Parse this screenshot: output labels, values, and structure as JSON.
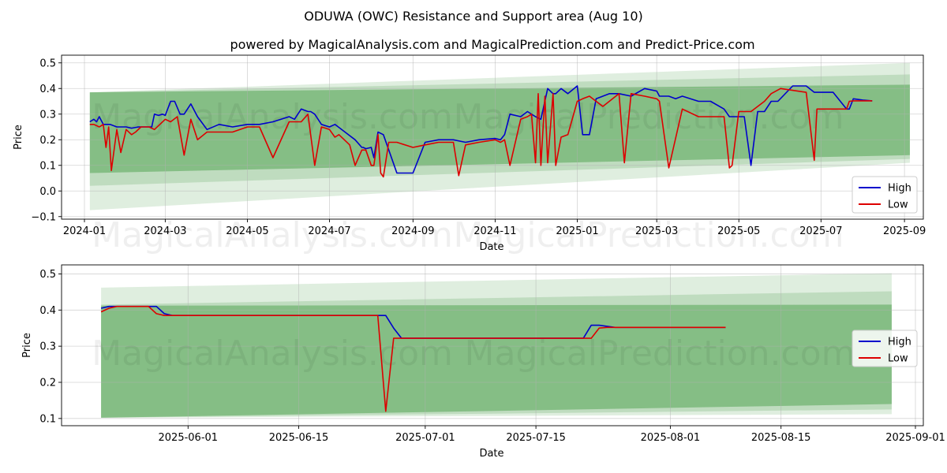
{
  "figure": {
    "title": "ODUWA (OWC) Resistance and Support area (Aug 10)",
    "subtitle": "powered by MagicalAnalysis.com and MagicalPrediction.com and Predict-Price.com",
    "watermark_left": "MagicalAnalysis.com",
    "watermark_right": "MagicalPrediction.com",
    "colors": {
      "high": "#0000cc",
      "low": "#dd0000",
      "band": "#4c9f4c"
    }
  },
  "chart_data": [
    {
      "type": "line",
      "xlabel": "Date",
      "ylabel": "Price",
      "xlim": [
        "2023-12-15",
        "2025-09-15"
      ],
      "ylim": [
        -0.11,
        0.53
      ],
      "x_ticks": [
        "2024-01-01",
        "2024-03-01",
        "2024-05-01",
        "2024-07-01",
        "2024-09-01",
        "2024-11-01",
        "2025-01-01",
        "2025-03-01",
        "2025-05-01",
        "2025-07-01",
        "2025-09-01"
      ],
      "x_tick_labels": [
        "2024-01",
        "2024-03",
        "2024-05",
        "2024-07",
        "2024-09",
        "2024-11",
        "2025-01",
        "2025-03",
        "2025-05",
        "2025-07",
        "2025-09"
      ],
      "y_ticks": [
        -0.1,
        0.0,
        0.1,
        0.2,
        0.3,
        0.4,
        0.5
      ],
      "y_tick_labels": [
        "−0.1",
        "0.0",
        "0.1",
        "0.2",
        "0.3",
        "0.4",
        "0.5"
      ],
      "grid": true,
      "legend": "lower right",
      "bands": [
        {
          "x": [
            "2024-01-05",
            "2025-09-05"
          ],
          "upper": [
            0.385,
            0.5
          ],
          "lower": [
            -0.075,
            0.11
          ],
          "opacity": 0.18
        },
        {
          "x": [
            "2024-01-05",
            "2025-09-05"
          ],
          "upper": [
            0.385,
            0.455
          ],
          "lower": [
            0.02,
            0.125
          ],
          "opacity": 0.22
        },
        {
          "x": [
            "2024-01-05",
            "2025-09-05"
          ],
          "upper": [
            0.385,
            0.415
          ],
          "lower": [
            0.07,
            0.14
          ],
          "opacity": 0.5
        }
      ],
      "series": [
        {
          "name": "High",
          "x": [
            "2024-01-05",
            "2024-01-08",
            "2024-01-10",
            "2024-01-12",
            "2024-01-15",
            "2024-01-20",
            "2024-01-25",
            "2024-02-01",
            "2024-02-05",
            "2024-02-10",
            "2024-02-15",
            "2024-02-20",
            "2024-02-22",
            "2024-02-25",
            "2024-02-28",
            "2024-03-01",
            "2024-03-05",
            "2024-03-08",
            "2024-03-12",
            "2024-03-15",
            "2024-03-20",
            "2024-03-25",
            "2024-04-01",
            "2024-04-10",
            "2024-04-20",
            "2024-05-01",
            "2024-05-10",
            "2024-05-20",
            "2024-06-01",
            "2024-06-05",
            "2024-06-10",
            "2024-06-15",
            "2024-06-17",
            "2024-06-20",
            "2024-06-25",
            "2024-07-01",
            "2024-07-05",
            "2024-07-10",
            "2024-07-15",
            "2024-07-20",
            "2024-07-25",
            "2024-07-26",
            "2024-07-28",
            "2024-08-01",
            "2024-08-03",
            "2024-08-06",
            "2024-08-10",
            "2024-08-20",
            "2024-09-01",
            "2024-09-10",
            "2024-09-20",
            "2024-10-01",
            "2024-10-10",
            "2024-10-20",
            "2024-11-01",
            "2024-11-05",
            "2024-11-08",
            "2024-11-12",
            "2024-11-20",
            "2024-11-25",
            "2024-11-28",
            "2024-12-01",
            "2024-12-05",
            "2024-12-10",
            "2024-12-14",
            "2024-12-16",
            "2024-12-20",
            "2024-12-25",
            "2025-01-01",
            "2025-01-05",
            "2025-01-10",
            "2025-01-15",
            "2025-01-20",
            "2025-01-25",
            "2025-02-01",
            "2025-02-10",
            "2025-02-20",
            "2025-03-01",
            "2025-03-03",
            "2025-03-10",
            "2025-03-15",
            "2025-03-20",
            "2025-04-01",
            "2025-04-10",
            "2025-04-20",
            "2025-04-24",
            "2025-04-26",
            "2025-05-01",
            "2025-05-05",
            "2025-05-10",
            "2025-05-15",
            "2025-05-20",
            "2025-05-25",
            "2025-05-30",
            "2025-06-10",
            "2025-06-20",
            "2025-06-26",
            "2025-06-28",
            "2025-07-10",
            "2025-07-20",
            "2025-07-22",
            "2025-07-25",
            "2025-08-01",
            "2025-08-08"
          ],
          "values": [
            0.27,
            0.28,
            0.27,
            0.29,
            0.26,
            0.26,
            0.25,
            0.25,
            0.245,
            0.25,
            0.25,
            0.25,
            0.3,
            0.295,
            0.3,
            0.295,
            0.35,
            0.35,
            0.3,
            0.3,
            0.34,
            0.29,
            0.24,
            0.26,
            0.25,
            0.26,
            0.26,
            0.27,
            0.29,
            0.28,
            0.32,
            0.31,
            0.31,
            0.3,
            0.26,
            0.25,
            0.26,
            0.24,
            0.22,
            0.2,
            0.17,
            0.17,
            0.165,
            0.17,
            0.13,
            0.23,
            0.22,
            0.07,
            0.07,
            0.19,
            0.2,
            0.2,
            0.19,
            0.2,
            0.205,
            0.2,
            0.22,
            0.3,
            0.29,
            0.31,
            0.3,
            0.29,
            0.28,
            0.4,
            0.38,
            0.38,
            0.4,
            0.38,
            0.41,
            0.22,
            0.22,
            0.36,
            0.37,
            0.38,
            0.38,
            0.37,
            0.4,
            0.39,
            0.37,
            0.37,
            0.36,
            0.37,
            0.35,
            0.35,
            0.32,
            0.29,
            0.29,
            0.29,
            0.29,
            0.1,
            0.31,
            0.31,
            0.35,
            0.35,
            0.41,
            0.41,
            0.385,
            0.385,
            0.385,
            0.32,
            0.32,
            0.36,
            0.355,
            0.352
          ]
        },
        {
          "name": "Low",
          "x": [
            "2024-01-05",
            "2024-01-08",
            "2024-01-12",
            "2024-01-15",
            "2024-01-17",
            "2024-01-19",
            "2024-01-21",
            "2024-01-25",
            "2024-01-28",
            "2024-02-01",
            "2024-02-05",
            "2024-02-08",
            "2024-02-12",
            "2024-02-18",
            "2024-02-22",
            "2024-02-26",
            "2024-03-01",
            "2024-03-05",
            "2024-03-10",
            "2024-03-15",
            "2024-03-20",
            "2024-03-25",
            "2024-04-01",
            "2024-04-10",
            "2024-04-20",
            "2024-05-01",
            "2024-05-10",
            "2024-05-20",
            "2024-06-01",
            "2024-06-10",
            "2024-06-15",
            "2024-06-20",
            "2024-06-25",
            "2024-07-01",
            "2024-07-05",
            "2024-07-08",
            "2024-07-12",
            "2024-07-16",
            "2024-07-20",
            "2024-07-25",
            "2024-07-28",
            "2024-08-01",
            "2024-08-03",
            "2024-08-06",
            "2024-08-08",
            "2024-08-10",
            "2024-08-14",
            "2024-08-20",
            "2024-09-01",
            "2024-09-10",
            "2024-09-20",
            "2024-10-01",
            "2024-10-05",
            "2024-10-10",
            "2024-10-20",
            "2024-11-01",
            "2024-11-05",
            "2024-11-08",
            "2024-11-12",
            "2024-11-20",
            "2024-11-25",
            "2024-11-28",
            "2024-12-01",
            "2024-12-03",
            "2024-12-05",
            "2024-12-08",
            "2024-12-10",
            "2024-12-14",
            "2024-12-16",
            "2024-12-20",
            "2024-12-25",
            "2025-01-01",
            "2025-01-05",
            "2025-01-10",
            "2025-01-20",
            "2025-02-01",
            "2025-02-05",
            "2025-02-10",
            "2025-02-20",
            "2025-03-01",
            "2025-03-03",
            "2025-03-10",
            "2025-03-20",
            "2025-04-01",
            "2025-04-10",
            "2025-04-20",
            "2025-04-24",
            "2025-04-26",
            "2025-05-01",
            "2025-05-10",
            "2025-05-20",
            "2025-05-25",
            "2025-06-01",
            "2025-06-20",
            "2025-06-26",
            "2025-06-28",
            "2025-07-10",
            "2025-07-20",
            "2025-07-22",
            "2025-07-25",
            "2025-08-01",
            "2025-08-08"
          ],
          "values": [
            0.26,
            0.26,
            0.25,
            0.26,
            0.17,
            0.25,
            0.08,
            0.24,
            0.15,
            0.24,
            0.22,
            0.23,
            0.25,
            0.25,
            0.24,
            0.26,
            0.28,
            0.27,
            0.29,
            0.14,
            0.28,
            0.2,
            0.23,
            0.23,
            0.23,
            0.25,
            0.25,
            0.13,
            0.27,
            0.27,
            0.3,
            0.1,
            0.25,
            0.24,
            0.21,
            0.22,
            0.2,
            0.18,
            0.1,
            0.16,
            0.16,
            0.1,
            0.1,
            0.22,
            0.07,
            0.055,
            0.19,
            0.19,
            0.17,
            0.18,
            0.19,
            0.19,
            0.06,
            0.18,
            0.19,
            0.2,
            0.19,
            0.2,
            0.1,
            0.28,
            0.29,
            0.3,
            0.11,
            0.38,
            0.1,
            0.37,
            0.11,
            0.38,
            0.1,
            0.21,
            0.22,
            0.35,
            0.36,
            0.37,
            0.33,
            0.38,
            0.11,
            0.38,
            0.37,
            0.36,
            0.35,
            0.09,
            0.32,
            0.29,
            0.29,
            0.29,
            0.09,
            0.1,
            0.31,
            0.31,
            0.35,
            0.38,
            0.4,
            0.385,
            0.12,
            0.32,
            0.32,
            0.32,
            0.35,
            0.352,
            0.352,
            0.352
          ]
        }
      ]
    },
    {
      "type": "line",
      "xlabel": "Date",
      "ylabel": "Price",
      "xlim": [
        "2025-05-16",
        "2025-09-02"
      ],
      "ylim": [
        0.08,
        0.525
      ],
      "x_ticks": [
        "2025-06-01",
        "2025-06-15",
        "2025-07-01",
        "2025-07-15",
        "2025-08-01",
        "2025-08-15",
        "2025-09-01"
      ],
      "x_tick_labels": [
        "2025-06-01",
        "2025-06-15",
        "2025-07-01",
        "2025-07-15",
        "2025-08-01",
        "2025-08-15",
        "2025-09-01"
      ],
      "y_ticks": [
        0.1,
        0.2,
        0.3,
        0.4,
        0.5
      ],
      "y_tick_labels": [
        "0.1",
        "0.2",
        "0.3",
        "0.4",
        "0.5"
      ],
      "grid": true,
      "legend": "center right",
      "bands": [
        {
          "x": [
            "2025-05-21",
            "2025-08-29"
          ],
          "upper": [
            0.462,
            0.502
          ],
          "lower": [
            0.102,
            0.112
          ],
          "opacity": 0.18
        },
        {
          "x": [
            "2025-05-21",
            "2025-08-29"
          ],
          "upper": [
            0.415,
            0.452
          ],
          "lower": [
            0.102,
            0.125
          ],
          "opacity": 0.22
        },
        {
          "x": [
            "2025-05-21",
            "2025-08-29"
          ],
          "upper": [
            0.412,
            0.415
          ],
          "lower": [
            0.102,
            0.14
          ],
          "opacity": 0.5
        }
      ],
      "series": [
        {
          "name": "High",
          "x": [
            "2025-05-21",
            "2025-05-22",
            "2025-05-23",
            "2025-05-24",
            "2025-05-25",
            "2025-05-26",
            "2025-05-27",
            "2025-05-28",
            "2025-05-29",
            "2025-05-30",
            "2025-06-25",
            "2025-06-26",
            "2025-06-27",
            "2025-06-28",
            "2025-07-21",
            "2025-07-22",
            "2025-07-23",
            "2025-07-24",
            "2025-07-25",
            "2025-08-08"
          ],
          "values": [
            0.405,
            0.41,
            0.41,
            0.41,
            0.41,
            0.41,
            0.41,
            0.41,
            0.39,
            0.385,
            0.385,
            0.385,
            0.35,
            0.322,
            0.322,
            0.358,
            0.358,
            0.355,
            0.352,
            0.352
          ]
        },
        {
          "name": "Low",
          "x": [
            "2025-05-21",
            "2025-05-22",
            "2025-05-23",
            "2025-05-24",
            "2025-05-25",
            "2025-05-26",
            "2025-05-27",
            "2025-05-28",
            "2025-05-29",
            "2025-05-30",
            "2025-06-25",
            "2025-06-26",
            "2025-06-27",
            "2025-06-28",
            "2025-07-21",
            "2025-07-22",
            "2025-07-23",
            "2025-07-24",
            "2025-07-25",
            "2025-08-08"
          ],
          "values": [
            0.395,
            0.405,
            0.41,
            0.41,
            0.41,
            0.41,
            0.41,
            0.39,
            0.385,
            0.385,
            0.385,
            0.12,
            0.322,
            0.322,
            0.322,
            0.322,
            0.35,
            0.352,
            0.352,
            0.352
          ]
        }
      ]
    }
  ]
}
